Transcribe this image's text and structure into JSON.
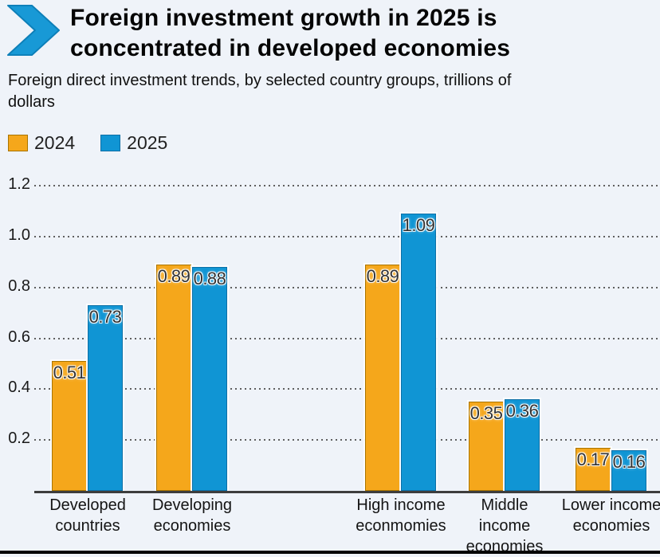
{
  "header": {
    "title": "Foreign investment growth in 2025 is\nconcentrated in developed economies",
    "subtitle": "Foreign direct investment trends, by selected country groups, trillions of\ndollars"
  },
  "legend": [
    {
      "label": "2024",
      "color": "#F5A71B",
      "border": "#A97400"
    },
    {
      "label": "2025",
      "color": "#1095D4",
      "border": "#0D6FA6"
    }
  ],
  "chart_data": {
    "type": "bar",
    "title": "Foreign investment growth in 2025 is concentrated in developed economies",
    "subtitle": "Foreign direct investment trends, by selected country groups, trillions of dollars",
    "xlabel": "",
    "ylabel": "trillions of dollars",
    "categories": [
      "Developed countries",
      "Developing economies",
      "High income econmomies",
      "Middle income economies",
      "Lower income economies"
    ],
    "tick_labels": [
      "Developed\ncountries",
      "Developing\neconomies",
      "High income\neconmomies",
      "Middle\nincome\neconomies",
      "Lower income\neconomies"
    ],
    "series": [
      {
        "name": "2024",
        "color": "#F5A71B",
        "border": "#A97400",
        "values": [
          0.51,
          0.89,
          0.89,
          0.35,
          0.17
        ]
      },
      {
        "name": "2025",
        "color": "#1095D4",
        "border": "#0D6FA6",
        "values": [
          0.73,
          0.88,
          1.09,
          0.36,
          0.16
        ]
      }
    ],
    "ylim": [
      0,
      1.2
    ],
    "yticks": [
      0.2,
      0.4,
      0.6,
      0.8,
      1.0,
      1.2
    ],
    "grid": "dotted-horizontal",
    "legend_position": "top-left",
    "value_labels": "inside-top",
    "accent_color": "#1899D6",
    "background_color": "#EFF3F9"
  }
}
